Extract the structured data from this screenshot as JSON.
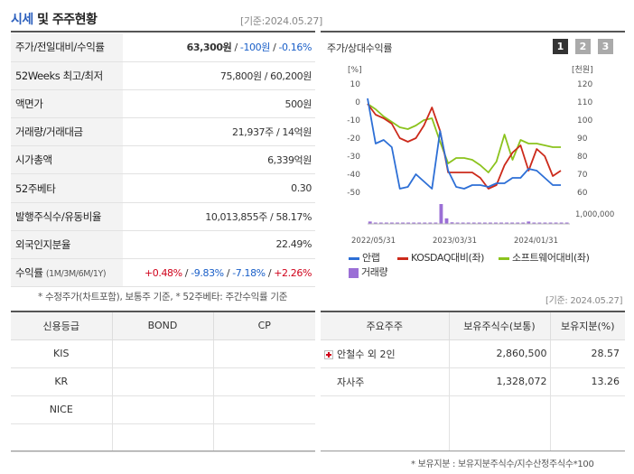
{
  "header": {
    "title_accent": "시세",
    "title_rest": " 및 주주현황",
    "base_date": "[기준:2024.05.27]"
  },
  "price_rows": [
    {
      "label": "주가/전일대비/수익률"
    },
    {
      "label": "52Weeks 최고/최저",
      "value": "75,800원 / 60,200원"
    },
    {
      "label": "액면가",
      "value": "500원"
    },
    {
      "label": "거래량/거래대금",
      "value": "21,937주 / 14억원"
    },
    {
      "label": "시가총액",
      "value": "6,339억원"
    },
    {
      "label": "52주베타",
      "value": "0.30"
    },
    {
      "label": "발행주식수/유동비율",
      "value": "10,013,855주 / 58.17%"
    },
    {
      "label": "외국인지분율",
      "value": "22.49%"
    },
    {
      "label": "수익률",
      "label_sub": "(1M/3M/6M/1Y)"
    }
  ],
  "price_row0": {
    "price": "63,300원",
    "sep1": " / ",
    "change": "-100원",
    "sep2": " / ",
    "rate": "-0.16%"
  },
  "returns": {
    "m1": "+0.48%",
    "m3": "-9.83%",
    "m6": "-7.18%",
    "y1": "+2.26%",
    "sep": " / "
  },
  "footnote": "* 수정주가(차트포함), 보통주 기준, * 52주베타: 주간수익률 기준",
  "chart_panel": {
    "title": "주가/상대수익률",
    "pages": [
      "1",
      "2",
      "3"
    ]
  },
  "chart_data": {
    "type": "line",
    "left_unit": "[%]",
    "right_unit": "[천원]",
    "left_ticks": [
      "10",
      "0",
      "-10",
      "-20",
      "-30",
      "-40",
      "-50"
    ],
    "right_ticks": [
      "120",
      "110",
      "100",
      "90",
      "80",
      "70",
      "60"
    ],
    "volume_tick": "1,000,000",
    "x_ticks": [
      "2022/05/31",
      "2023/03/31",
      "2024/01/31"
    ],
    "ylim_left": [
      -50,
      10
    ],
    "series": [
      {
        "name": "안랩",
        "color": "#2d6fd6",
        "values": [
          2,
          -23,
          -21,
          -25,
          -48,
          -47,
          -40,
          -44,
          -48,
          -16,
          -38,
          -47,
          -48,
          -46,
          -46,
          -47,
          -45,
          -45,
          -42,
          -42,
          -37,
          -38,
          -42,
          -46,
          -46
        ]
      },
      {
        "name": "KOSDAQ대비(좌)",
        "color": "#cc2a1b",
        "values": [
          -1,
          -7,
          -9,
          -12,
          -20,
          -22,
          -20,
          -13,
          -3,
          -16,
          -39,
          -39,
          -39,
          -39,
          -42,
          -48,
          -46,
          -35,
          -28,
          -24,
          -38,
          -26,
          -30,
          -41,
          -38
        ]
      },
      {
        "name": "소프트웨어대비(좌)",
        "color": "#8bc31d",
        "values": [
          -1,
          -4,
          -8,
          -11,
          -14,
          -15,
          -13,
          -10,
          -9,
          -22,
          -34,
          -31,
          -31,
          -32,
          -35,
          -39,
          -33,
          -18,
          -32,
          -21,
          -23,
          -23,
          -24,
          -25,
          -25
        ]
      }
    ],
    "volume_name": "거래량",
    "volume_color": "#9b6fd6",
    "volume_values": [
      0.12,
      0.05,
      0.04,
      0.06,
      0.05,
      0.04,
      0.05,
      0.04,
      0.05,
      0.04,
      0.05,
      0.04,
      0.05,
      1.0,
      0.28,
      0.08,
      0.06,
      0.05,
      0.04,
      0.05,
      0.04,
      0.05,
      0.06,
      0.04,
      0.05,
      0.04,
      0.05,
      0.04,
      0.05,
      0.12,
      0.05,
      0.04,
      0.06,
      0.05,
      0.04,
      0.05,
      0.05
    ]
  },
  "right_base_date": "[기준: 2024.05.27]",
  "credit": {
    "headers": [
      "신용등급",
      "BOND",
      "CP"
    ],
    "rows": [
      [
        "KIS",
        "",
        ""
      ],
      [
        "KR",
        "",
        ""
      ],
      [
        "NICE",
        "",
        ""
      ],
      [
        "",
        "",
        ""
      ]
    ]
  },
  "holders": {
    "headers": [
      "주요주주",
      "보유주식수(보통)",
      "보유지분(%)"
    ],
    "rows": [
      {
        "name": "안철수 외 2인",
        "shares": "2,860,500",
        "pct": "28.57"
      },
      {
        "name": "자사주",
        "shares": "1,328,072",
        "pct": "13.26"
      }
    ],
    "footnote": "* 보유지분 : 보유지분주식수/지수산정주식수*100"
  }
}
